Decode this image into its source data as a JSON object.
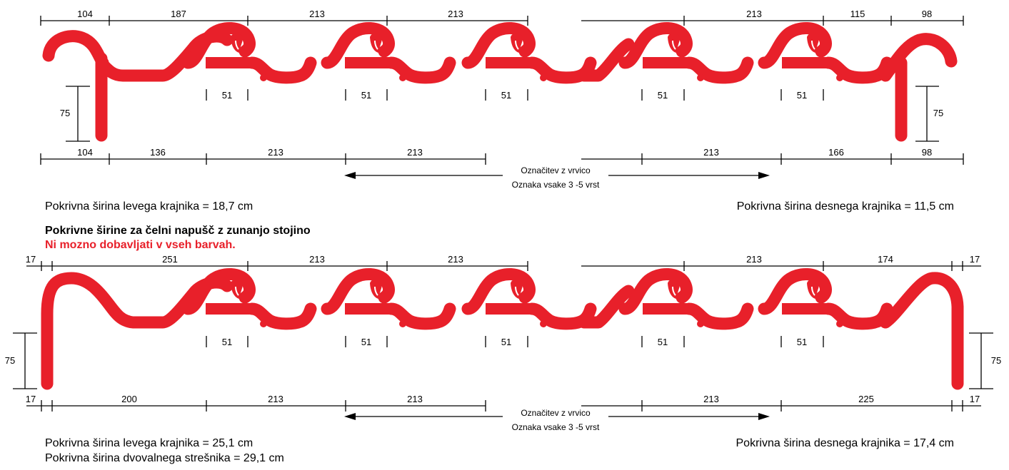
{
  "colors": {
    "tile": "#e8202a",
    "line": "#000000",
    "warning": "#e8202a"
  },
  "top": {
    "dims_top_left": [
      "104",
      "187",
      "213",
      "213"
    ],
    "dims_top_right": [
      "213",
      "115",
      "98"
    ],
    "dims_bottom_left": [
      "104",
      "136",
      "213",
      "213"
    ],
    "dims_bottom_right": [
      "213",
      "166",
      "98"
    ],
    "height_left": "75",
    "height_right": "75",
    "overlap": [
      "51",
      "51",
      "51",
      "51",
      "51"
    ],
    "marker_line1": "Označitev z vrvico",
    "marker_line2": "Oznaka vsake 3 -5 vrst",
    "left_width": "Pokrivna širina levega krajnika = 18,7 cm",
    "right_width": "Pokrivna širina desnega krajnika = 11,5 cm"
  },
  "section": {
    "heading": "Pokrivne širine za čelni napušč z zunanjo stojino",
    "warning": "Ni mozno dobavljati v vseh barvah."
  },
  "bottom": {
    "dims_top_left": [
      "17",
      "251",
      "213",
      "213"
    ],
    "dims_top_right": [
      "213",
      "174",
      "17"
    ],
    "dims_bottom_left": [
      "17",
      "200",
      "213",
      "213"
    ],
    "dims_bottom_right": [
      "213",
      "225",
      "17"
    ],
    "height_left": "75",
    "height_right": "75",
    "overlap": [
      "51",
      "51",
      "51",
      "51",
      "51"
    ],
    "marker_line1": "Označitev z vrvico",
    "marker_line2": "Oznaka vsake 3 -5 vrst",
    "left_width": "Pokrivna širina levega krajnika = 25,1 cm",
    "double_width": "Pokrivna širina dvovalnega strešnika = 29,1 cm",
    "right_width": "Pokrivna širina desnega krajnika = 17,4 cm"
  }
}
